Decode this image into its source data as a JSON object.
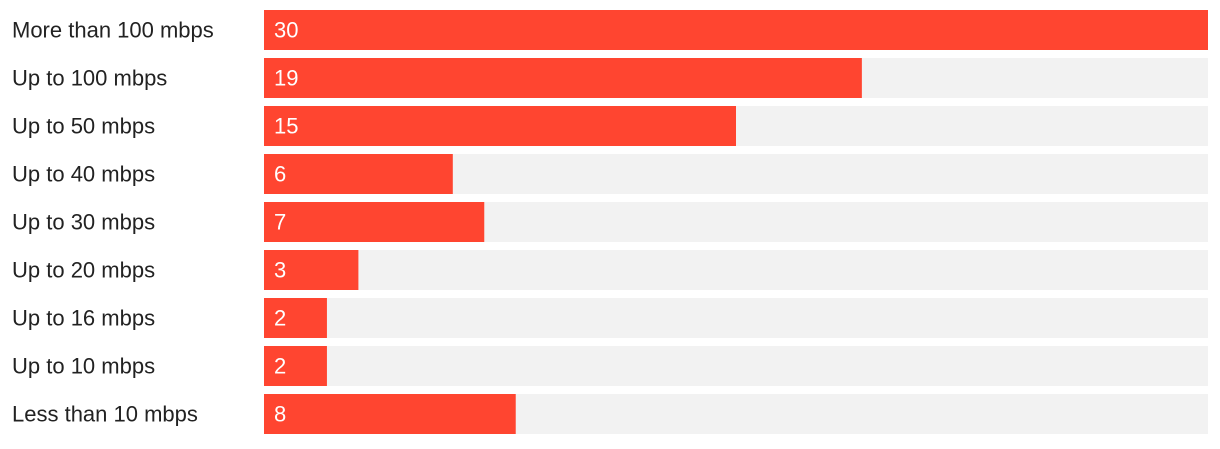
{
  "chart_data": {
    "type": "bar",
    "orientation": "horizontal",
    "categories": [
      "More than 100 mbps",
      "Up to 100 mbps",
      "Up to 50 mbps",
      "Up to 40 mbps",
      "Up to 30 mbps",
      "Up to 20 mbps",
      "Up to 16 mbps",
      "Up to 10 mbps",
      "Less than 10 mbps"
    ],
    "values": [
      30,
      19,
      15,
      6,
      7,
      3,
      2,
      2,
      8
    ],
    "color": "#ff4530",
    "track_color": "#f2f2f2",
    "xlim": [
      0,
      30
    ]
  }
}
